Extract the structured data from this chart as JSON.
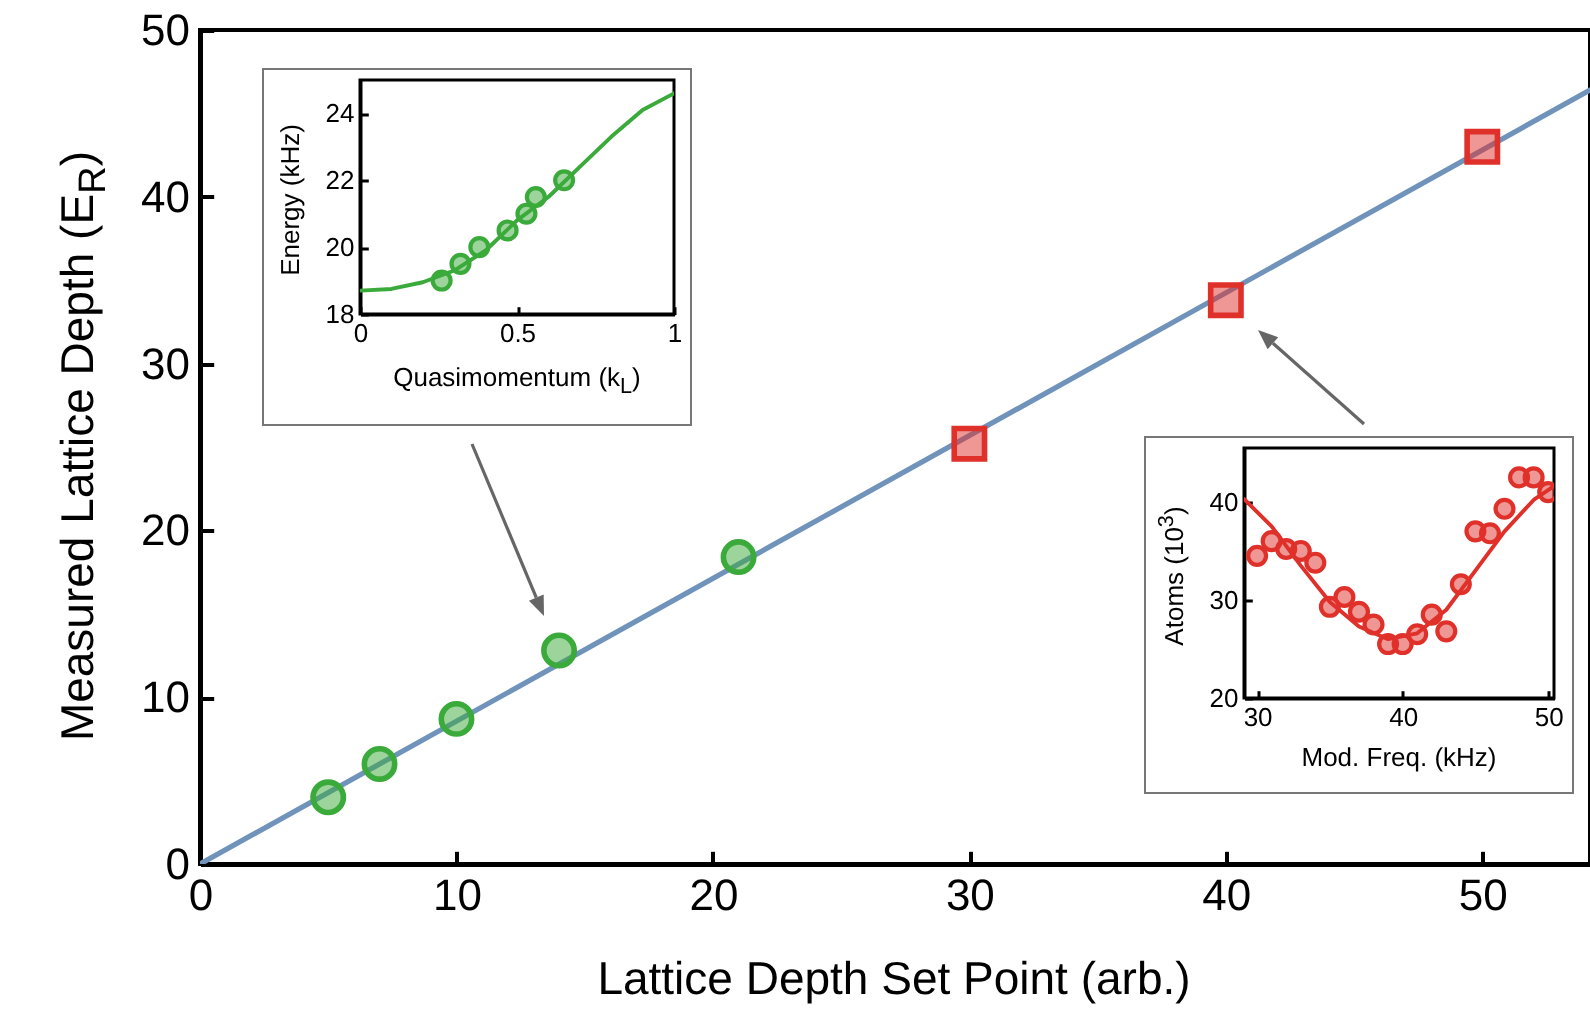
{
  "chart_data": [
    {
      "type": "scatter",
      "xlabel": "Lattice Depth Set Point (arb.)",
      "ylabel": "Measured Lattice Depth (E$_{R}$)",
      "xlim": [
        0,
        54.2
      ],
      "ylim": [
        0,
        50
      ],
      "xticks": [
        0,
        10,
        20,
        30,
        40,
        50
      ],
      "yticks": [
        0,
        10,
        20,
        30,
        40,
        50
      ],
      "series": [
        {
          "type": "line",
          "color": "#6f93bb",
          "x": [
            0,
            54.2
          ],
          "values": [
            0,
            46.4
          ]
        },
        {
          "marker": "circle",
          "color": "#3aaa3a",
          "x": [
            5,
            7,
            10,
            14,
            21
          ],
          "values": [
            4.0,
            6.0,
            8.7,
            12.8,
            18.4
          ]
        },
        {
          "marker": "square",
          "color": "#e0302a",
          "x": [
            30,
            40,
            50
          ],
          "values": [
            25.2,
            33.8,
            43.0
          ]
        }
      ]
    },
    {
      "type": "scatter",
      "xlabel": "Quasimomentum (k$_{L}$)",
      "ylabel": "Energy (kHz)",
      "xlim": [
        0,
        1
      ],
      "ylim": [
        18,
        25
      ],
      "xticks": [
        0,
        0.5,
        1
      ],
      "yticks": [
        18,
        20,
        22,
        24
      ],
      "series": [
        {
          "type": "line",
          "color": "#3aaa3a",
          "x": [
            0,
            0.1,
            0.2,
            0.3,
            0.4,
            0.5,
            0.6,
            0.7,
            0.8,
            0.9,
            1.0
          ],
          "values": [
            18.7,
            18.75,
            18.95,
            19.3,
            19.9,
            20.8,
            21.5,
            22.4,
            23.3,
            24.1,
            24.6
          ]
        },
        {
          "marker": "circle",
          "color": "#3aaa3a",
          "x": [
            0.26,
            0.32,
            0.38,
            0.47,
            0.53,
            0.56,
            0.65
          ],
          "values": [
            19.0,
            19.5,
            20.0,
            20.5,
            21.0,
            21.5,
            22.0
          ]
        }
      ]
    },
    {
      "type": "scatter",
      "xlabel": "Mod. Freq. (kHz)",
      "ylabel": "Atoms (10$^{3}$)",
      "xlim": [
        29.1,
        50.4
      ],
      "ylim": [
        20,
        45.5
      ],
      "xticks": [
        30,
        40,
        50
      ],
      "yticks": [
        20,
        30,
        40
      ],
      "series": [
        {
          "type": "line",
          "color": "#e0302a",
          "x": [
            29.1,
            31,
            33,
            35,
            37,
            39,
            41,
            43,
            45,
            47,
            49,
            50.4
          ],
          "values": [
            40.3,
            37.5,
            33.5,
            29.8,
            27.3,
            26.0,
            26.6,
            29.0,
            33.0,
            37.0,
            40.2,
            41.6
          ]
        },
        {
          "marker": "circle",
          "color": "#e0302a",
          "x": [
            30,
            31,
            32,
            33,
            34,
            35,
            36,
            37,
            38,
            39,
            40,
            41,
            42,
            43,
            44,
            45,
            46,
            47,
            48,
            49,
            50
          ],
          "values": [
            34.5,
            36,
            35.2,
            35,
            33.8,
            29.3,
            30.3,
            28.8,
            27.5,
            25.5,
            25.5,
            26.5,
            28.5,
            26.8,
            31.6,
            37,
            36.8,
            39.3,
            42.5,
            42.5,
            41
          ]
        }
      ]
    }
  ]
}
